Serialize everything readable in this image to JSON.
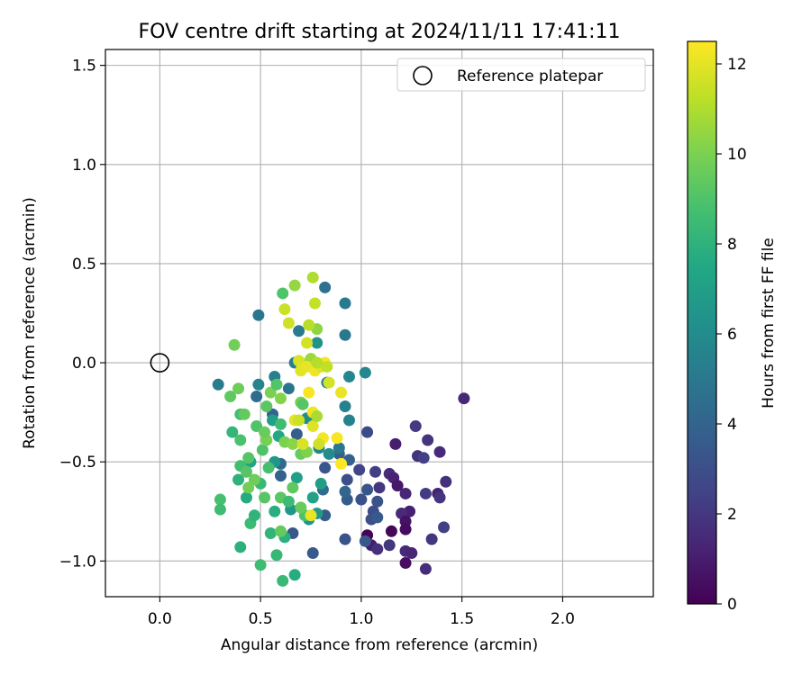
{
  "chart_data": {
    "type": "scatter",
    "title": "FOV centre drift starting at 2024/11/11 17:41:11",
    "xlabel": "Angular distance from reference (arcmin)",
    "ylabel": "Rotation from reference (arcmin)",
    "xlim": [
      -0.27,
      2.45
    ],
    "ylim": [
      -1.18,
      1.58
    ],
    "xticks": [
      0.0,
      0.5,
      1.0,
      1.5,
      2.0
    ],
    "xtick_labels": [
      "0.0",
      "0.5",
      "1.0",
      "1.5",
      "2.0"
    ],
    "yticks": [
      -1.0,
      -0.5,
      0.0,
      0.5,
      1.0,
      1.5
    ],
    "ytick_labels": [
      "−1.0",
      "−0.5",
      "0.0",
      "0.5",
      "1.0",
      "1.5"
    ],
    "grid": true,
    "legend": {
      "position": "top-right",
      "entries": [
        "Reference platepar"
      ]
    },
    "reference_point": {
      "x": 0.0,
      "y": 0.0
    },
    "colorbar": {
      "label": "Hours from first FF file",
      "colormap": "viridis",
      "range": [
        0,
        12.5
      ],
      "ticks": [
        0,
        2,
        4,
        6,
        8,
        10,
        12
      ],
      "tick_labels": [
        "0",
        "2",
        "4",
        "6",
        "8",
        "10",
        "12"
      ]
    },
    "point_color_hex": [
      "#440154",
      "#482475",
      "#414487",
      "#355f8d",
      "#2a788e",
      "#21918c",
      "#22a884",
      "#44bf70",
      "#7ad151",
      "#bddf26",
      "#fde725"
    ],
    "points": [
      {
        "x": 1.51,
        "y": -0.18,
        "h": 1.4
      },
      {
        "x": 1.17,
        "y": -0.41,
        "h": 1.0
      },
      {
        "x": 1.07,
        "y": -0.55,
        "h": 2.3
      },
      {
        "x": 1.14,
        "y": -0.56,
        "h": 1.6
      },
      {
        "x": 1.16,
        "y": -0.58,
        "h": 1.2
      },
      {
        "x": 1.18,
        "y": -0.62,
        "h": 0.8
      },
      {
        "x": 1.22,
        "y": -0.66,
        "h": 1.3
      },
      {
        "x": 1.09,
        "y": -0.63,
        "h": 2.0
      },
      {
        "x": 1.24,
        "y": -0.75,
        "h": 1.1
      },
      {
        "x": 1.2,
        "y": -0.76,
        "h": 1.5
      },
      {
        "x": 1.22,
        "y": -0.8,
        "h": 0.6
      },
      {
        "x": 1.22,
        "y": -0.84,
        "h": 0.4
      },
      {
        "x": 1.15,
        "y": -0.85,
        "h": 0.2
      },
      {
        "x": 1.03,
        "y": -0.87,
        "h": 0.1
      },
      {
        "x": 1.05,
        "y": -0.92,
        "h": 1.0
      },
      {
        "x": 1.08,
        "y": -0.94,
        "h": 1.7
      },
      {
        "x": 1.14,
        "y": -0.92,
        "h": 2.0
      },
      {
        "x": 1.22,
        "y": -0.95,
        "h": 1.5
      },
      {
        "x": 1.25,
        "y": -0.96,
        "h": 1.3
      },
      {
        "x": 1.22,
        "y": -1.01,
        "h": 0.5
      },
      {
        "x": 1.32,
        "y": -1.04,
        "h": 1.6
      },
      {
        "x": 1.27,
        "y": -0.32,
        "h": 2.1
      },
      {
        "x": 1.33,
        "y": -0.39,
        "h": 1.9
      },
      {
        "x": 1.39,
        "y": -0.45,
        "h": 1.5
      },
      {
        "x": 1.28,
        "y": -0.47,
        "h": 1.8
      },
      {
        "x": 1.31,
        "y": -0.48,
        "h": 2.4
      },
      {
        "x": 1.42,
        "y": -0.6,
        "h": 1.7
      },
      {
        "x": 1.32,
        "y": -0.66,
        "h": 2.2
      },
      {
        "x": 1.38,
        "y": -0.66,
        "h": 1.2
      },
      {
        "x": 1.39,
        "y": -0.68,
        "h": 1.9
      },
      {
        "x": 1.41,
        "y": -0.83,
        "h": 2.4
      },
      {
        "x": 1.35,
        "y": -0.89,
        "h": 2.0
      },
      {
        "x": 1.03,
        "y": -0.35,
        "h": 2.8
      },
      {
        "x": 0.99,
        "y": -0.54,
        "h": 2.5
      },
      {
        "x": 0.93,
        "y": -0.59,
        "h": 3.0
      },
      {
        "x": 1.0,
        "y": -0.69,
        "h": 3.1
      },
      {
        "x": 1.03,
        "y": -0.64,
        "h": 3.3
      },
      {
        "x": 1.08,
        "y": -0.7,
        "h": 3.2
      },
      {
        "x": 1.06,
        "y": -0.75,
        "h": 2.9
      },
      {
        "x": 1.05,
        "y": -0.79,
        "h": 3.0
      },
      {
        "x": 1.08,
        "y": -0.78,
        "h": 3.5
      },
      {
        "x": 0.93,
        "y": -0.69,
        "h": 3.6
      },
      {
        "x": 0.92,
        "y": -0.89,
        "h": 3.2
      },
      {
        "x": 1.02,
        "y": -0.9,
        "h": 3.4
      },
      {
        "x": 0.76,
        "y": -0.96,
        "h": 3.5
      },
      {
        "x": 0.89,
        "y": -0.46,
        "h": 3.8
      },
      {
        "x": 0.82,
        "y": -0.53,
        "h": 3.3
      },
      {
        "x": 0.94,
        "y": -0.49,
        "h": 3.9
      },
      {
        "x": 0.92,
        "y": -0.65,
        "h": 4.1
      },
      {
        "x": 0.81,
        "y": -0.64,
        "h": 4.4
      },
      {
        "x": 0.82,
        "y": -0.77,
        "h": 3.6
      },
      {
        "x": 0.66,
        "y": -0.86,
        "h": 3.4
      },
      {
        "x": 0.6,
        "y": -0.57,
        "h": 3.9
      },
      {
        "x": 0.6,
        "y": -0.51,
        "h": 4.3
      },
      {
        "x": 0.56,
        "y": -0.26,
        "h": 4.0
      },
      {
        "x": 0.48,
        "y": -0.17,
        "h": 4.4
      },
      {
        "x": 0.68,
        "y": -0.36,
        "h": 3.7
      },
      {
        "x": 0.49,
        "y": 0.24,
        "h": 4.9
      },
      {
        "x": 0.82,
        "y": 0.38,
        "h": 4.7
      },
      {
        "x": 0.92,
        "y": 0.3,
        "h": 5.1
      },
      {
        "x": 0.92,
        "y": 0.14,
        "h": 5.0
      },
      {
        "x": 0.69,
        "y": 0.16,
        "h": 5.2
      },
      {
        "x": 0.78,
        "y": 0.1,
        "h": 6.3
      },
      {
        "x": 1.02,
        "y": -0.05,
        "h": 5.8
      },
      {
        "x": 0.94,
        "y": -0.07,
        "h": 5.7
      },
      {
        "x": 0.92,
        "y": -0.22,
        "h": 5.4
      },
      {
        "x": 0.94,
        "y": -0.29,
        "h": 5.5
      },
      {
        "x": 0.67,
        "y": 0.0,
        "h": 5.3
      },
      {
        "x": 0.75,
        "y": 0.01,
        "h": 5.9
      },
      {
        "x": 0.29,
        "y": -0.11,
        "h": 5.2
      },
      {
        "x": 0.49,
        "y": -0.11,
        "h": 5.6
      },
      {
        "x": 0.57,
        "y": -0.07,
        "h": 5.4
      },
      {
        "x": 0.64,
        "y": -0.13,
        "h": 4.8
      },
      {
        "x": 0.83,
        "y": -0.1,
        "h": 5.5
      },
      {
        "x": 0.79,
        "y": -0.43,
        "h": 5.6
      },
      {
        "x": 0.73,
        "y": -0.28,
        "h": 6.1
      },
      {
        "x": 0.89,
        "y": -0.43,
        "h": 5.0
      },
      {
        "x": 0.84,
        "y": -0.46,
        "h": 6.0
      },
      {
        "x": 0.74,
        "y": -0.79,
        "h": 6.4
      },
      {
        "x": 0.65,
        "y": -0.74,
        "h": 6.6
      },
      {
        "x": 0.76,
        "y": -0.68,
        "h": 7.1
      },
      {
        "x": 0.68,
        "y": -0.58,
        "h": 7.0
      },
      {
        "x": 0.78,
        "y": -0.76,
        "h": 6.8
      },
      {
        "x": 0.8,
        "y": -0.61,
        "h": 6.9
      },
      {
        "x": 0.57,
        "y": -0.5,
        "h": 6.5
      },
      {
        "x": 0.59,
        "y": -0.37,
        "h": 7.4
      },
      {
        "x": 0.56,
        "y": -0.29,
        "h": 7.0
      },
      {
        "x": 0.45,
        "y": -0.5,
        "h": 7.2
      },
      {
        "x": 0.43,
        "y": -0.68,
        "h": 7.6
      },
      {
        "x": 0.57,
        "y": -0.75,
        "h": 7.8
      },
      {
        "x": 0.62,
        "y": -0.88,
        "h": 7.9
      },
      {
        "x": 0.55,
        "y": -0.86,
        "h": 8.1
      },
      {
        "x": 0.58,
        "y": -0.97,
        "h": 8.3
      },
      {
        "x": 0.67,
        "y": -1.07,
        "h": 7.7
      },
      {
        "x": 0.61,
        "y": -1.1,
        "h": 8.4
      },
      {
        "x": 0.5,
        "y": -1.02,
        "h": 8.6
      },
      {
        "x": 0.4,
        "y": -0.93,
        "h": 7.9
      },
      {
        "x": 0.45,
        "y": -0.81,
        "h": 8.5
      },
      {
        "x": 0.47,
        "y": -0.77,
        "h": 8.1
      },
      {
        "x": 0.3,
        "y": -0.69,
        "h": 8.8
      },
      {
        "x": 0.3,
        "y": -0.74,
        "h": 8.6
      },
      {
        "x": 0.39,
        "y": -0.59,
        "h": 8.0
      },
      {
        "x": 0.4,
        "y": -0.52,
        "h": 8.7
      },
      {
        "x": 0.36,
        "y": -0.35,
        "h": 8.2
      },
      {
        "x": 0.4,
        "y": -0.39,
        "h": 8.9
      },
      {
        "x": 0.48,
        "y": -0.32,
        "h": 9.0
      },
      {
        "x": 0.44,
        "y": -0.48,
        "h": 9.1
      },
      {
        "x": 0.5,
        "y": -0.61,
        "h": 8.4
      },
      {
        "x": 0.54,
        "y": -0.53,
        "h": 8.8
      },
      {
        "x": 0.52,
        "y": -0.68,
        "h": 9.2
      },
      {
        "x": 0.6,
        "y": -0.68,
        "h": 9.3
      },
      {
        "x": 0.64,
        "y": -0.7,
        "h": 8.5
      },
      {
        "x": 0.66,
        "y": -0.63,
        "h": 9.4
      },
      {
        "x": 0.72,
        "y": -0.77,
        "h": 8.9
      },
      {
        "x": 0.7,
        "y": -0.73,
        "h": 9.6
      },
      {
        "x": 0.6,
        "y": -0.85,
        "h": 9.5
      },
      {
        "x": 0.47,
        "y": -0.59,
        "h": 9.7
      },
      {
        "x": 0.44,
        "y": -0.63,
        "h": 9.8
      },
      {
        "x": 0.43,
        "y": -0.55,
        "h": 9.2
      },
      {
        "x": 0.51,
        "y": -0.44,
        "h": 9.0
      },
      {
        "x": 0.53,
        "y": -0.39,
        "h": 9.9
      },
      {
        "x": 0.52,
        "y": -0.35,
        "h": 9.6
      },
      {
        "x": 0.6,
        "y": -0.31,
        "h": 8.6
      },
      {
        "x": 0.53,
        "y": -0.22,
        "h": 9.3
      },
      {
        "x": 0.55,
        "y": -0.15,
        "h": 10.0
      },
      {
        "x": 0.58,
        "y": -0.11,
        "h": 9.1
      },
      {
        "x": 0.6,
        "y": -0.18,
        "h": 10.2
      },
      {
        "x": 0.35,
        "y": -0.17,
        "h": 9.4
      },
      {
        "x": 0.39,
        "y": -0.13,
        "h": 9.7
      },
      {
        "x": 0.4,
        "y": -0.26,
        "h": 8.7
      },
      {
        "x": 0.42,
        "y": -0.26,
        "h": 9.5
      },
      {
        "x": 0.37,
        "y": 0.09,
        "h": 9.8
      },
      {
        "x": 0.61,
        "y": 0.35,
        "h": 9.0
      },
      {
        "x": 0.7,
        "y": -0.2,
        "h": 9.9
      },
      {
        "x": 0.7,
        "y": -0.46,
        "h": 9.6
      },
      {
        "x": 0.62,
        "y": -0.4,
        "h": 10.0
      },
      {
        "x": 0.66,
        "y": -0.41,
        "h": 10.3
      },
      {
        "x": 0.73,
        "y": -0.45,
        "h": 10.1
      },
      {
        "x": 0.78,
        "y": 0.17,
        "h": 10.4
      },
      {
        "x": 0.75,
        "y": 0.02,
        "h": 10.6
      },
      {
        "x": 0.7,
        "y": 0.0,
        "h": 10.8
      },
      {
        "x": 0.67,
        "y": 0.39,
        "h": 10.5
      },
      {
        "x": 0.76,
        "y": 0.43,
        "h": 11.0
      },
      {
        "x": 0.74,
        "y": 0.19,
        "h": 11.2
      },
      {
        "x": 0.77,
        "y": 0.3,
        "h": 11.4
      },
      {
        "x": 0.62,
        "y": 0.27,
        "h": 11.5
      },
      {
        "x": 0.64,
        "y": 0.2,
        "h": 11.6
      },
      {
        "x": 0.69,
        "y": 0.01,
        "h": 11.8
      },
      {
        "x": 0.7,
        "y": -0.04,
        "h": 12.0
      },
      {
        "x": 0.73,
        "y": -0.02,
        "h": 12.1
      },
      {
        "x": 0.77,
        "y": -0.04,
        "h": 12.2
      },
      {
        "x": 0.8,
        "y": -0.02,
        "h": 11.9
      },
      {
        "x": 0.82,
        "y": 0.0,
        "h": 12.3
      },
      {
        "x": 0.84,
        "y": -0.1,
        "h": 11.7
      },
      {
        "x": 0.74,
        "y": -0.15,
        "h": 12.4
      },
      {
        "x": 0.9,
        "y": -0.15,
        "h": 12.1
      },
      {
        "x": 0.76,
        "y": -0.25,
        "h": 12.2
      },
      {
        "x": 0.76,
        "y": -0.32,
        "h": 11.9
      },
      {
        "x": 0.67,
        "y": -0.29,
        "h": 12.0
      },
      {
        "x": 0.69,
        "y": -0.29,
        "h": 11.5
      },
      {
        "x": 0.81,
        "y": -0.38,
        "h": 12.3
      },
      {
        "x": 0.79,
        "y": -0.41,
        "h": 11.6
      },
      {
        "x": 0.71,
        "y": -0.41,
        "h": 11.8
      },
      {
        "x": 0.88,
        "y": -0.38,
        "h": 12.4
      },
      {
        "x": 0.9,
        "y": -0.51,
        "h": 12.5
      },
      {
        "x": 0.75,
        "y": -0.77,
        "h": 12.1
      },
      {
        "x": 0.83,
        "y": -0.02,
        "h": 11.3
      },
      {
        "x": 0.78,
        "y": -0.27,
        "h": 10.9
      },
      {
        "x": 0.71,
        "y": -0.21,
        "h": 9.2
      },
      {
        "x": 0.78,
        "y": 0.0,
        "h": 11.1
      },
      {
        "x": 0.73,
        "y": 0.1,
        "h": 11.7
      }
    ]
  }
}
